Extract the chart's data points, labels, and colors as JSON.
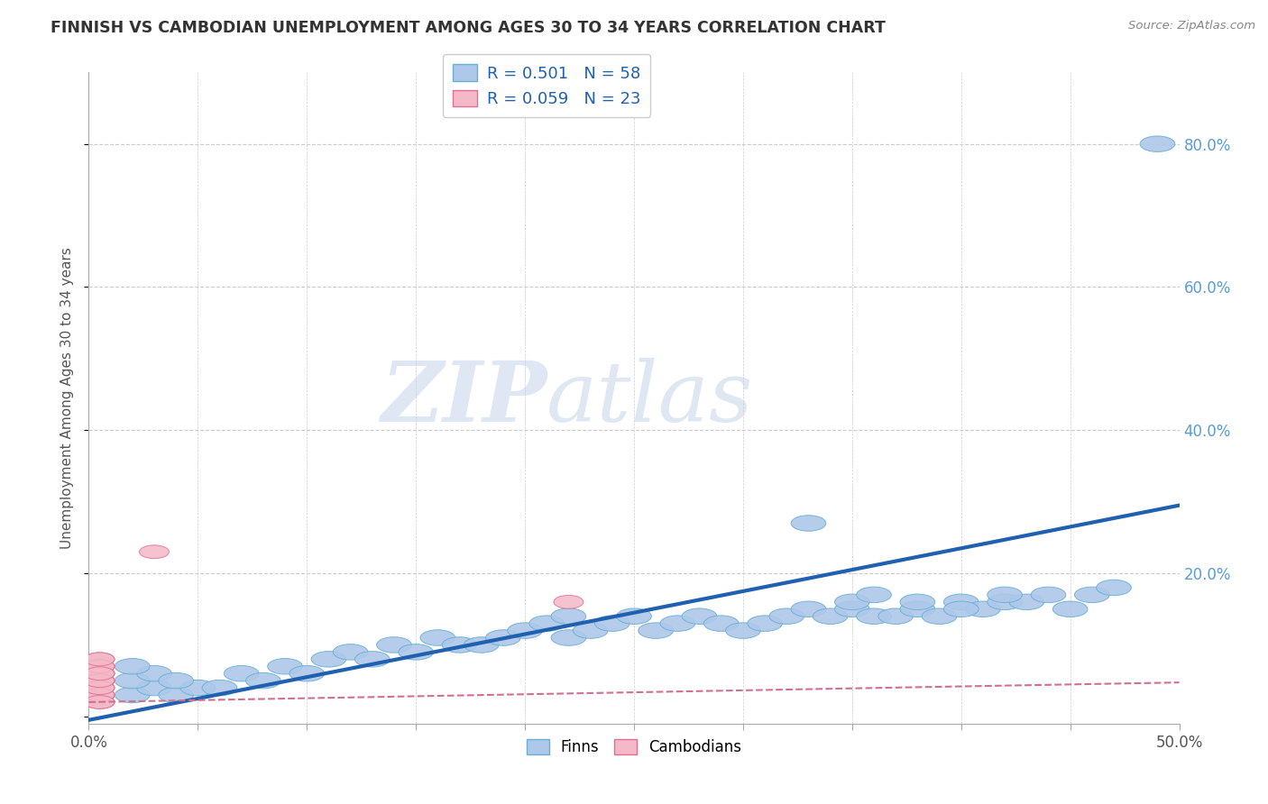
{
  "title": "FINNISH VS CAMBODIAN UNEMPLOYMENT AMONG AGES 30 TO 34 YEARS CORRELATION CHART",
  "source": "Source: ZipAtlas.com",
  "ylabel": "Unemployment Among Ages 30 to 34 years",
  "xlim": [
    0.0,
    0.5
  ],
  "ylim": [
    -0.01,
    0.9
  ],
  "y_tick_vals_right": [
    0.2,
    0.4,
    0.6,
    0.8
  ],
  "y_tick_labels_right": [
    "20.0%",
    "40.0%",
    "60.0%",
    "80.0%"
  ],
  "finn_R": "0.501",
  "finn_N": "58",
  "camb_R": "0.059",
  "camb_N": "23",
  "finn_color": "#adc8e8",
  "finn_edge_color": "#6aaed6",
  "camb_color": "#f4b8c8",
  "camb_edge_color": "#e07090",
  "finn_line_color": "#2060b0",
  "camb_line_color": "#d07090",
  "watermark_zip": "ZIP",
  "watermark_atlas": "atlas",
  "background_color": "#ffffff",
  "grid_color": "#cccccc",
  "finn_slope": 0.6,
  "finn_intercept": -0.005,
  "camb_slope": 0.055,
  "camb_intercept": 0.02,
  "finn_scatter_x": [
    0.02,
    0.03,
    0.02,
    0.04,
    0.05,
    0.03,
    0.02,
    0.04,
    0.06,
    0.07,
    0.08,
    0.09,
    0.1,
    0.11,
    0.12,
    0.13,
    0.14,
    0.15,
    0.16,
    0.17,
    0.18,
    0.19,
    0.2,
    0.21,
    0.22,
    0.22,
    0.23,
    0.24,
    0.25,
    0.26,
    0.27,
    0.28,
    0.29,
    0.3,
    0.31,
    0.32,
    0.33,
    0.34,
    0.35,
    0.36,
    0.37,
    0.38,
    0.39,
    0.4,
    0.41,
    0.42,
    0.43,
    0.44,
    0.45,
    0.46,
    0.33,
    0.35,
    0.36,
    0.38,
    0.4,
    0.42,
    0.49,
    0.47
  ],
  "finn_scatter_y": [
    0.03,
    0.04,
    0.05,
    0.03,
    0.04,
    0.06,
    0.07,
    0.05,
    0.04,
    0.06,
    0.05,
    0.07,
    0.06,
    0.08,
    0.09,
    0.08,
    0.1,
    0.09,
    0.11,
    0.1,
    0.1,
    0.11,
    0.12,
    0.13,
    0.11,
    0.14,
    0.12,
    0.13,
    0.14,
    0.12,
    0.13,
    0.14,
    0.13,
    0.12,
    0.13,
    0.14,
    0.15,
    0.14,
    0.15,
    0.14,
    0.14,
    0.15,
    0.14,
    0.16,
    0.15,
    0.16,
    0.16,
    0.17,
    0.15,
    0.17,
    0.27,
    0.16,
    0.17,
    0.16,
    0.15,
    0.17,
    0.8,
    0.18
  ],
  "camb_scatter_x": [
    0.005,
    0.005,
    0.005,
    0.005,
    0.005,
    0.005,
    0.005,
    0.005,
    0.005,
    0.005,
    0.005,
    0.005,
    0.005,
    0.005,
    0.005,
    0.005,
    0.005,
    0.005,
    0.005,
    0.005,
    0.22,
    0.03,
    0.005
  ],
  "camb_scatter_y": [
    0.02,
    0.03,
    0.04,
    0.05,
    0.06,
    0.07,
    0.08,
    0.03,
    0.05,
    0.06,
    0.04,
    0.07,
    0.05,
    0.03,
    0.06,
    0.04,
    0.07,
    0.08,
    0.05,
    0.06,
    0.16,
    0.23,
    0.02
  ]
}
